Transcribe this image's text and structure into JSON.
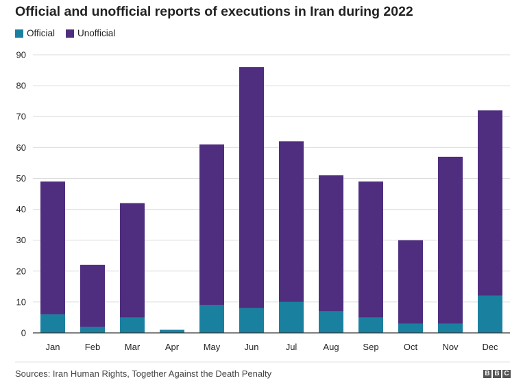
{
  "title": "Official and unofficial reports of executions in Iran during 2022",
  "legend": [
    {
      "label": "Official",
      "color": "#1a80a0"
    },
    {
      "label": "Unofficial",
      "color": "#4f2d7f"
    }
  ],
  "source": "Sources: Iran Human Rights, Together Against the Death Penalty",
  "brand_letters": [
    "B",
    "B",
    "C"
  ],
  "chart_data": {
    "type": "bar",
    "stacked": true,
    "categories": [
      "Jan",
      "Feb",
      "Mar",
      "Apr",
      "May",
      "Jun",
      "Jul",
      "Aug",
      "Sep",
      "Oct",
      "Nov",
      "Dec"
    ],
    "series": [
      {
        "name": "Official",
        "color": "#1a80a0",
        "values": [
          6,
          2,
          5,
          1,
          9,
          8,
          10,
          7,
          5,
          3,
          3,
          12
        ]
      },
      {
        "name": "Unofficial",
        "color": "#4f2d7f",
        "values": [
          43,
          20,
          37,
          0,
          52,
          78,
          52,
          44,
          44,
          27,
          54,
          60
        ]
      }
    ],
    "totals": [
      49,
      22,
      42,
      1,
      61,
      86,
      62,
      51,
      49,
      30,
      57,
      72
    ],
    "ylim": [
      0,
      90
    ],
    "yticks": [
      0,
      10,
      20,
      30,
      40,
      50,
      60,
      70,
      80,
      90
    ],
    "grid": true,
    "legend_position": "top-left",
    "xlabel": "",
    "ylabel": ""
  }
}
